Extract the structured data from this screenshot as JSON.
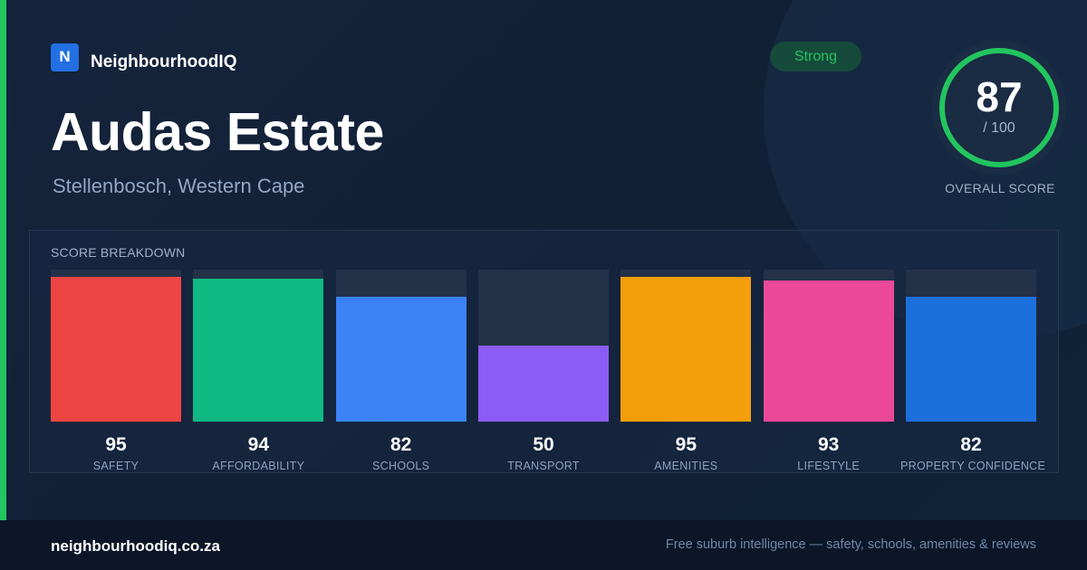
{
  "brand": {
    "logo_letter": "N",
    "name": "NeighbourhoodIQ"
  },
  "suburb": {
    "name": "Audas Estate",
    "location": "Stellenbosch, Western Cape"
  },
  "rating_badge": "Strong",
  "overall": {
    "score": 87,
    "max_label": "/ 100",
    "max": 100,
    "label": "OVERALL SCORE",
    "ring_color": "#22c55e"
  },
  "breakdown": {
    "title": "SCORE BREAKDOWN",
    "items": [
      {
        "label": "SAFETY",
        "value": 95,
        "color": "#ef4444"
      },
      {
        "label": "AFFORDABILITY",
        "value": 94,
        "color": "#10b981"
      },
      {
        "label": "SCHOOLS",
        "value": 82,
        "color": "#3b82f6"
      },
      {
        "label": "TRANSPORT",
        "value": 50,
        "color": "#8b5cf6"
      },
      {
        "label": "AMENITIES",
        "value": 95,
        "color": "#f59e0b"
      },
      {
        "label": "LIFESTYLE",
        "value": 93,
        "color": "#ec4899"
      },
      {
        "label": "PROPERTY CONFIDENCE",
        "value": 82,
        "color": "#1d6fdc"
      }
    ]
  },
  "footer": {
    "url": "neighbourhoodiq.co.za",
    "tagline": "Free suburb intelligence — safety, schools, amenities & reviews"
  },
  "colors": {
    "accent": "#22c55e",
    "background": "#13213a",
    "brand": "#2270e3"
  }
}
